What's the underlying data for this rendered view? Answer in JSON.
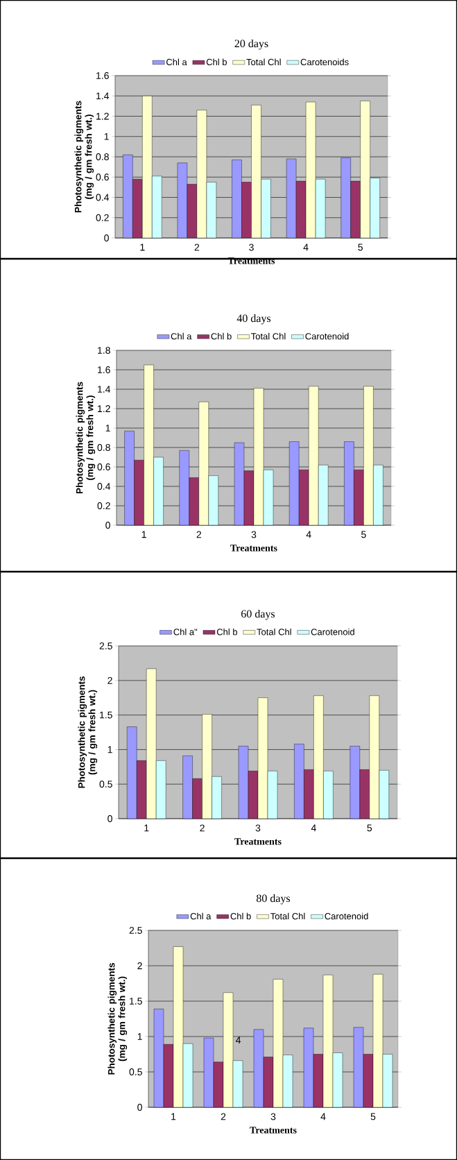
{
  "chart_data": [
    {
      "type": "bar",
      "title": "20 days",
      "xlabel": "Treatments",
      "ylabel": "Photosynthetic pigments (mg / gm fresh wt.)",
      "categories": [
        "1",
        "2",
        "3",
        "4",
        "5"
      ],
      "series": [
        {
          "name": "Chl a",
          "color": "#9999ff",
          "values": [
            0.82,
            0.74,
            0.77,
            0.78,
            0.79
          ]
        },
        {
          "name": "Chl b",
          "color": "#993366",
          "values": [
            0.58,
            0.53,
            0.55,
            0.56,
            0.56
          ]
        },
        {
          "name": "Total Chl",
          "color": "#ffffcc",
          "values": [
            1.4,
            1.26,
            1.31,
            1.34,
            1.35
          ]
        },
        {
          "name": "Carotenoids",
          "color": "#ccffff",
          "values": [
            0.61,
            0.55,
            0.58,
            0.58,
            0.59
          ]
        }
      ],
      "ylim": [
        0,
        1.6
      ],
      "yticks": [
        0,
        0.2,
        0.4,
        0.6,
        0.8,
        1,
        1.2,
        1.4,
        1.6
      ],
      "grid": "y",
      "legend": "top"
    },
    {
      "type": "bar",
      "title": "40 days",
      "xlabel": "Treatments",
      "ylabel": "Photosynthetic pigments (mg / gm fresh wt.)",
      "categories": [
        "1",
        "2",
        "3",
        "4",
        "5"
      ],
      "series": [
        {
          "name": "Chl a",
          "color": "#9999ff",
          "values": [
            0.97,
            0.77,
            0.85,
            0.86,
            0.86
          ]
        },
        {
          "name": "Chl b",
          "color": "#993366",
          "values": [
            0.67,
            0.49,
            0.56,
            0.57,
            0.57
          ]
        },
        {
          "name": "Total Chl",
          "color": "#ffffcc",
          "values": [
            1.65,
            1.27,
            1.41,
            1.43,
            1.43
          ]
        },
        {
          "name": "Carotenoid",
          "color": "#ccffff",
          "values": [
            0.7,
            0.51,
            0.57,
            0.62,
            0.62
          ]
        }
      ],
      "ylim": [
        0,
        1.8
      ],
      "yticks": [
        0,
        0.2,
        0.4,
        0.6,
        0.8,
        1,
        1.2,
        1.4,
        1.6,
        1.8
      ],
      "grid": "y",
      "legend": "top"
    },
    {
      "type": "bar",
      "title": "60 days",
      "xlabel": "Treatments",
      "ylabel": "Photosynthetic pigments (mg / gm fresh wt.)",
      "categories": [
        "1",
        "2",
        "3",
        "4",
        "5"
      ],
      "series": [
        {
          "name": "Chl a\"",
          "color": "#9999ff",
          "values": [
            1.33,
            0.91,
            1.05,
            1.08,
            1.05
          ]
        },
        {
          "name": "Chl b",
          "color": "#993366",
          "values": [
            0.84,
            0.58,
            0.69,
            0.71,
            0.71
          ]
        },
        {
          "name": "Total Chl",
          "color": "#ffffcc",
          "values": [
            2.17,
            1.51,
            1.75,
            1.78,
            1.78
          ]
        },
        {
          "name": "Carotenoid",
          "color": "#ccffff",
          "values": [
            0.84,
            0.61,
            0.69,
            0.69,
            0.7
          ]
        }
      ],
      "ylim": [
        0,
        2.5
      ],
      "yticks": [
        0,
        0.5,
        1,
        1.5,
        2,
        2.5
      ],
      "grid": "y",
      "legend": "top"
    },
    {
      "type": "bar",
      "title": "80 days",
      "xlabel": "Treatments",
      "ylabel": "Photosynthetic pigments (mg / gm fresh wt.)",
      "categories": [
        "1",
        "2",
        "3",
        "4",
        "5"
      ],
      "series": [
        {
          "name": "Chl a",
          "color": "#9999ff",
          "values": [
            1.39,
            0.98,
            1.1,
            1.12,
            1.13
          ]
        },
        {
          "name": "Chl b",
          "color": "#993366",
          "values": [
            0.89,
            0.64,
            0.71,
            0.75,
            0.75
          ]
        },
        {
          "name": "Total Chl",
          "color": "#ffffcc",
          "values": [
            2.27,
            1.62,
            1.81,
            1.87,
            1.88
          ]
        },
        {
          "name": "Carotenoid",
          "color": "#ccffff",
          "values": [
            0.9,
            0.66,
            0.74,
            0.77,
            0.75
          ]
        }
      ],
      "ylim": [
        0,
        2.5
      ],
      "yticks": [
        0,
        0.5,
        1,
        1.5,
        2,
        2.5
      ],
      "grid": "y",
      "legend": "top",
      "annotations": [
        "4"
      ]
    }
  ]
}
